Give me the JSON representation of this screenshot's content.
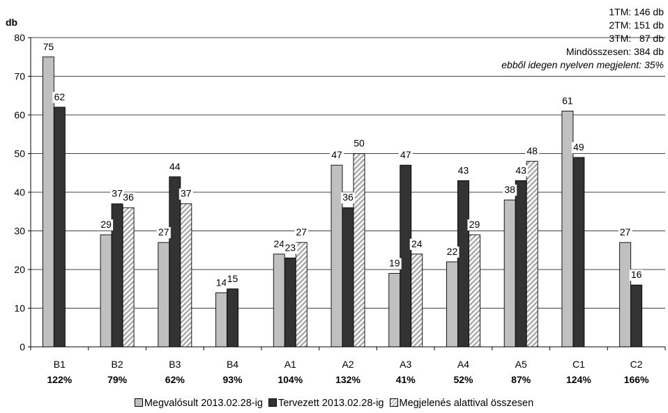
{
  "chart_data": {
    "type": "bar",
    "ylabel": "db",
    "ylim": [
      0,
      80
    ],
    "yticks": [
      0,
      10,
      20,
      30,
      40,
      50,
      60,
      70,
      80
    ],
    "grid": true,
    "legend_position": "bottom",
    "categories": [
      "B1",
      "B2",
      "B3",
      "B4",
      "A1",
      "A2",
      "A3",
      "A4",
      "A5",
      "C1",
      "C2"
    ],
    "category_percents": [
      "122%",
      "79%",
      "62%",
      "93%",
      "104%",
      "132%",
      "41%",
      "52%",
      "87%",
      "124%",
      "166%"
    ],
    "series": [
      {
        "name": "Megvalósult 2013.02.28-ig",
        "color": "#c0c0c0",
        "pattern": "solid",
        "values": [
          75,
          29,
          27,
          14,
          24,
          47,
          19,
          22,
          38,
          61,
          27
        ]
      },
      {
        "name": "Tervezett 2013.02.28-ig",
        "color": "#333333",
        "pattern": "solid",
        "values": [
          62,
          37,
          44,
          15,
          23,
          36,
          47,
          43,
          43,
          49,
          16
        ]
      },
      {
        "name": "Megjelenés alattival összesen",
        "color": "#bbbbbb",
        "pattern": "diagonal-hatch",
        "values": [
          null,
          36,
          37,
          null,
          27,
          50,
          24,
          29,
          48,
          null,
          null
        ]
      }
    ],
    "annotations": [
      "1TM: 146 db",
      "2TM: 151 db",
      "3TM:   87 db",
      "Mindösszesen: 384 db",
      "ebből idegen nyelven megjelent: 35%"
    ]
  }
}
